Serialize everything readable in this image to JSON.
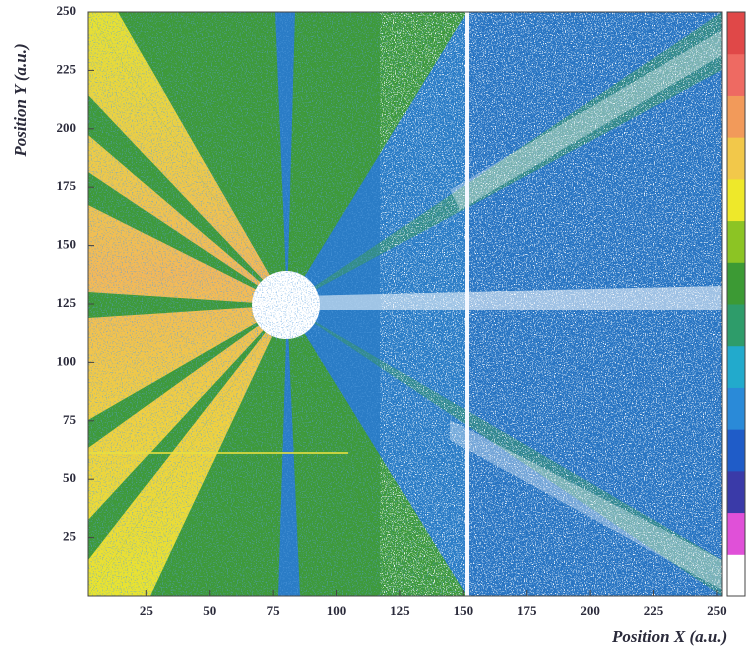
{
  "chart_data": {
    "type": "heatmap",
    "xlabel": "Position X (a.u.)",
    "ylabel": "Position Y (a.u.)",
    "xlim": [
      2,
      252
    ],
    "ylim": [
      0,
      250
    ],
    "xticks": [
      25,
      50,
      75,
      100,
      125,
      150,
      175,
      200,
      225,
      250
    ],
    "yticks": [
      25,
      50,
      75,
      100,
      125,
      150,
      175,
      200,
      225,
      250
    ],
    "colorbar_colors": [
      "#ffffff",
      "#e050d8",
      "#3a3aa8",
      "#1f5cc8",
      "#2a8ad8",
      "#22aacc",
      "#2e9c6a",
      "#3c9a34",
      "#8cc424",
      "#eee82a",
      "#f2c84a",
      "#f29a5a",
      "#ee6a62",
      "#e04848"
    ]
  }
}
